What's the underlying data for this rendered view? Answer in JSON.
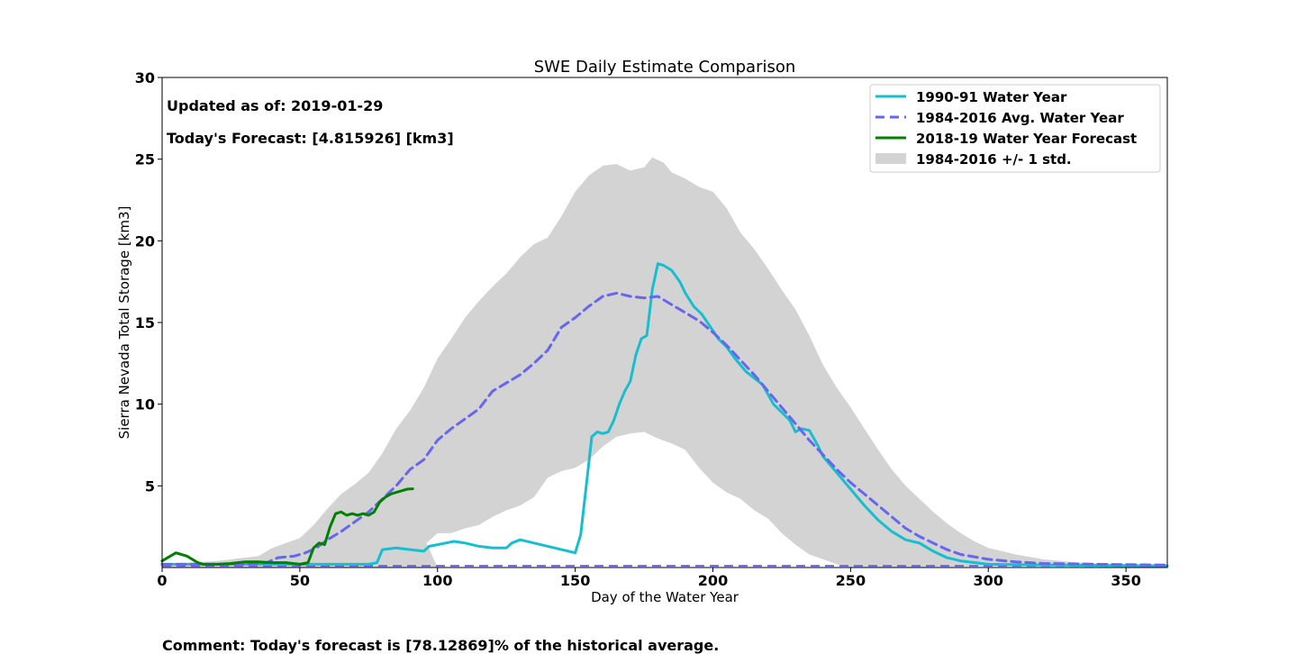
{
  "chart_data": {
    "type": "line",
    "title": "SWE Daily Estimate Comparison",
    "xlabel": "Day of the Water Year",
    "ylabel": "Sierra Nevada Total Storage [km3]",
    "xlim": [
      0,
      365
    ],
    "ylim": [
      0,
      30
    ],
    "xticks": [
      "0",
      "50",
      "100",
      "150",
      "200",
      "250",
      "300",
      "350"
    ],
    "yticks": [
      "5",
      "10",
      "15",
      "20",
      "25",
      "30"
    ],
    "grid": false,
    "legend_position": "top-right",
    "annotations": {
      "updated": "Updated as of: 2019-01-29",
      "forecast": "Today's Forecast: [4.815926] [km3]"
    },
    "band": {
      "name": "1984-2016 +/- 1 std.",
      "color": "#d3d3d3",
      "upper": [
        [
          0,
          0.2
        ],
        [
          20,
          0.4
        ],
        [
          35,
          0.7
        ],
        [
          40,
          1.2
        ],
        [
          45,
          1.5
        ],
        [
          50,
          1.8
        ],
        [
          55,
          2.6
        ],
        [
          60,
          3.6
        ],
        [
          65,
          4.5
        ],
        [
          70,
          5.1
        ],
        [
          75,
          5.8
        ],
        [
          80,
          7.0
        ],
        [
          85,
          8.5
        ],
        [
          90,
          9.6
        ],
        [
          95,
          11.0
        ],
        [
          100,
          12.8
        ],
        [
          105,
          14.0
        ],
        [
          110,
          15.3
        ],
        [
          115,
          16.3
        ],
        [
          120,
          17.2
        ],
        [
          125,
          18.0
        ],
        [
          130,
          19.0
        ],
        [
          135,
          19.8
        ],
        [
          140,
          20.2
        ],
        [
          145,
          21.5
        ],
        [
          150,
          23.0
        ],
        [
          155,
          24.0
        ],
        [
          160,
          24.6
        ],
        [
          165,
          24.7
        ],
        [
          170,
          24.3
        ],
        [
          175,
          24.5
        ],
        [
          178,
          25.1
        ],
        [
          182,
          24.8
        ],
        [
          185,
          24.2
        ],
        [
          190,
          23.8
        ],
        [
          195,
          23.3
        ],
        [
          200,
          23.0
        ],
        [
          205,
          22.0
        ],
        [
          210,
          20.5
        ],
        [
          215,
          19.5
        ],
        [
          220,
          18.3
        ],
        [
          225,
          17.0
        ],
        [
          230,
          15.8
        ],
        [
          235,
          14.2
        ],
        [
          240,
          12.4
        ],
        [
          245,
          11.0
        ],
        [
          250,
          9.8
        ],
        [
          255,
          8.5
        ],
        [
          260,
          7.2
        ],
        [
          265,
          6.0
        ],
        [
          270,
          5.0
        ],
        [
          275,
          4.2
        ],
        [
          280,
          3.4
        ],
        [
          285,
          2.7
        ],
        [
          290,
          2.1
        ],
        [
          295,
          1.6
        ],
        [
          300,
          1.2
        ],
        [
          310,
          0.8
        ],
        [
          320,
          0.5
        ],
        [
          330,
          0.35
        ],
        [
          340,
          0.25
        ],
        [
          350,
          0.2
        ],
        [
          365,
          0.15
        ]
      ],
      "lower": [
        [
          0,
          0
        ],
        [
          50,
          0
        ],
        [
          100,
          0
        ],
        [
          96,
          1.5
        ],
        [
          100,
          2.1
        ],
        [
          105,
          2.1
        ],
        [
          110,
          2.4
        ],
        [
          115,
          2.6
        ],
        [
          120,
          3.1
        ],
        [
          125,
          3.5
        ],
        [
          130,
          3.8
        ],
        [
          135,
          4.3
        ],
        [
          140,
          5.5
        ],
        [
          145,
          5.9
        ],
        [
          150,
          6.1
        ],
        [
          155,
          6.6
        ],
        [
          160,
          7.4
        ],
        [
          165,
          8.0
        ],
        [
          170,
          8.2
        ],
        [
          175,
          8.3
        ],
        [
          180,
          7.9
        ],
        [
          185,
          7.6
        ],
        [
          190,
          7.2
        ],
        [
          195,
          6.1
        ],
        [
          200,
          5.2
        ],
        [
          205,
          4.6
        ],
        [
          210,
          4.2
        ],
        [
          215,
          3.5
        ],
        [
          220,
          3.0
        ],
        [
          225,
          2.1
        ],
        [
          230,
          1.4
        ],
        [
          235,
          0.8
        ],
        [
          240,
          0.5
        ],
        [
          245,
          0.2
        ],
        [
          250,
          0
        ]
      ]
    },
    "series": [
      {
        "name": "1990-91 Water Year",
        "color": "#17becf",
        "style": "solid",
        "points": [
          [
            0,
            0.2
          ],
          [
            55,
            0.2
          ],
          [
            60,
            0.2
          ],
          [
            75,
            0.2
          ],
          [
            78,
            0.3
          ],
          [
            80,
            1.1
          ],
          [
            85,
            1.2
          ],
          [
            90,
            1.1
          ],
          [
            95,
            1.0
          ],
          [
            97,
            1.3
          ],
          [
            100,
            1.4
          ],
          [
            103,
            1.5
          ],
          [
            106,
            1.6
          ],
          [
            110,
            1.5
          ],
          [
            115,
            1.3
          ],
          [
            120,
            1.2
          ],
          [
            125,
            1.2
          ],
          [
            127,
            1.5
          ],
          [
            130,
            1.7
          ],
          [
            135,
            1.5
          ],
          [
            140,
            1.3
          ],
          [
            145,
            1.1
          ],
          [
            150,
            0.9
          ],
          [
            152,
            2.0
          ],
          [
            154,
            5.0
          ],
          [
            156,
            8.0
          ],
          [
            158,
            8.3
          ],
          [
            160,
            8.2
          ],
          [
            162,
            8.3
          ],
          [
            164,
            9.0
          ],
          [
            166,
            10.0
          ],
          [
            168,
            10.8
          ],
          [
            170,
            11.4
          ],
          [
            172,
            13.0
          ],
          [
            174,
            14.0
          ],
          [
            176,
            14.2
          ],
          [
            178,
            17.0
          ],
          [
            180,
            18.6
          ],
          [
            182,
            18.5
          ],
          [
            185,
            18.2
          ],
          [
            188,
            17.5
          ],
          [
            190,
            16.8
          ],
          [
            193,
            16.0
          ],
          [
            196,
            15.5
          ],
          [
            198,
            15.0
          ],
          [
            202,
            14.0
          ],
          [
            205,
            13.5
          ],
          [
            208,
            12.8
          ],
          [
            212,
            12.0
          ],
          [
            215,
            11.6
          ],
          [
            218,
            11.2
          ],
          [
            222,
            10.0
          ],
          [
            225,
            9.5
          ],
          [
            228,
            9.0
          ],
          [
            230,
            8.3
          ],
          [
            232,
            8.5
          ],
          [
            235,
            8.4
          ],
          [
            238,
            7.5
          ],
          [
            240,
            6.8
          ],
          [
            245,
            5.8
          ],
          [
            250,
            4.8
          ],
          [
            255,
            3.8
          ],
          [
            260,
            2.9
          ],
          [
            265,
            2.2
          ],
          [
            270,
            1.7
          ],
          [
            275,
            1.5
          ],
          [
            280,
            1.0
          ],
          [
            285,
            0.6
          ],
          [
            290,
            0.4
          ],
          [
            300,
            0.2
          ],
          [
            320,
            0.15
          ],
          [
            365,
            0.1
          ]
        ]
      },
      {
        "name": "1984-2016 Avg. Water Year",
        "color": "#6666ee",
        "style": "dashed",
        "points": [
          [
            0,
            0.2
          ],
          [
            30,
            0.2
          ],
          [
            38,
            0.3
          ],
          [
            42,
            0.6
          ],
          [
            48,
            0.7
          ],
          [
            52,
            0.9
          ],
          [
            56,
            1.2
          ],
          [
            60,
            1.7
          ],
          [
            65,
            2.2
          ],
          [
            70,
            2.8
          ],
          [
            75,
            3.4
          ],
          [
            80,
            4.2
          ],
          [
            85,
            5.0
          ],
          [
            90,
            6.0
          ],
          [
            95,
            6.6
          ],
          [
            100,
            7.8
          ],
          [
            105,
            8.5
          ],
          [
            110,
            9.1
          ],
          [
            115,
            9.7
          ],
          [
            120,
            10.8
          ],
          [
            125,
            11.3
          ],
          [
            130,
            11.8
          ],
          [
            135,
            12.5
          ],
          [
            140,
            13.3
          ],
          [
            145,
            14.7
          ],
          [
            150,
            15.3
          ],
          [
            155,
            16.0
          ],
          [
            160,
            16.6
          ],
          [
            165,
            16.8
          ],
          [
            170,
            16.6
          ],
          [
            175,
            16.5
          ],
          [
            180,
            16.6
          ],
          [
            185,
            16.1
          ],
          [
            190,
            15.6
          ],
          [
            195,
            15.1
          ],
          [
            200,
            14.4
          ],
          [
            205,
            13.6
          ],
          [
            210,
            12.7
          ],
          [
            215,
            11.8
          ],
          [
            220,
            10.8
          ],
          [
            225,
            9.8
          ],
          [
            230,
            8.8
          ],
          [
            235,
            7.8
          ],
          [
            240,
            6.9
          ],
          [
            245,
            6.0
          ],
          [
            250,
            5.2
          ],
          [
            255,
            4.5
          ],
          [
            260,
            3.8
          ],
          [
            265,
            3.1
          ],
          [
            270,
            2.4
          ],
          [
            275,
            1.9
          ],
          [
            280,
            1.5
          ],
          [
            285,
            1.1
          ],
          [
            290,
            0.8
          ],
          [
            300,
            0.5
          ],
          [
            310,
            0.35
          ],
          [
            320,
            0.25
          ],
          [
            340,
            0.2
          ],
          [
            365,
            0.15
          ]
        ]
      },
      {
        "name": "2018-19 Water Year Forecast",
        "color": "#008000",
        "style": "solid",
        "points": [
          [
            0,
            0.4
          ],
          [
            2,
            0.6
          ],
          [
            5,
            0.9
          ],
          [
            7,
            0.8
          ],
          [
            9,
            0.7
          ],
          [
            11,
            0.5
          ],
          [
            13,
            0.3
          ],
          [
            15,
            0.2
          ],
          [
            20,
            0.2
          ],
          [
            25,
            0.25
          ],
          [
            30,
            0.35
          ],
          [
            35,
            0.35
          ],
          [
            40,
            0.3
          ],
          [
            45,
            0.3
          ],
          [
            50,
            0.2
          ],
          [
            53,
            0.3
          ],
          [
            55,
            1.2
          ],
          [
            57,
            1.5
          ],
          [
            59,
            1.4
          ],
          [
            61,
            2.5
          ],
          [
            63,
            3.3
          ],
          [
            65,
            3.4
          ],
          [
            67,
            3.2
          ],
          [
            69,
            3.3
          ],
          [
            71,
            3.2
          ],
          [
            73,
            3.3
          ],
          [
            75,
            3.2
          ],
          [
            77,
            3.4
          ],
          [
            79,
            4.0
          ],
          [
            81,
            4.3
          ],
          [
            83,
            4.5
          ],
          [
            85,
            4.6
          ],
          [
            87,
            4.7
          ],
          [
            89,
            4.8
          ],
          [
            91,
            4.82
          ]
        ]
      }
    ],
    "baseline": {
      "color": "#6666ee",
      "style": "dashed",
      "value": 0.1
    }
  },
  "comment": "Comment: Today's forecast is [78.12869]% of the historical average."
}
